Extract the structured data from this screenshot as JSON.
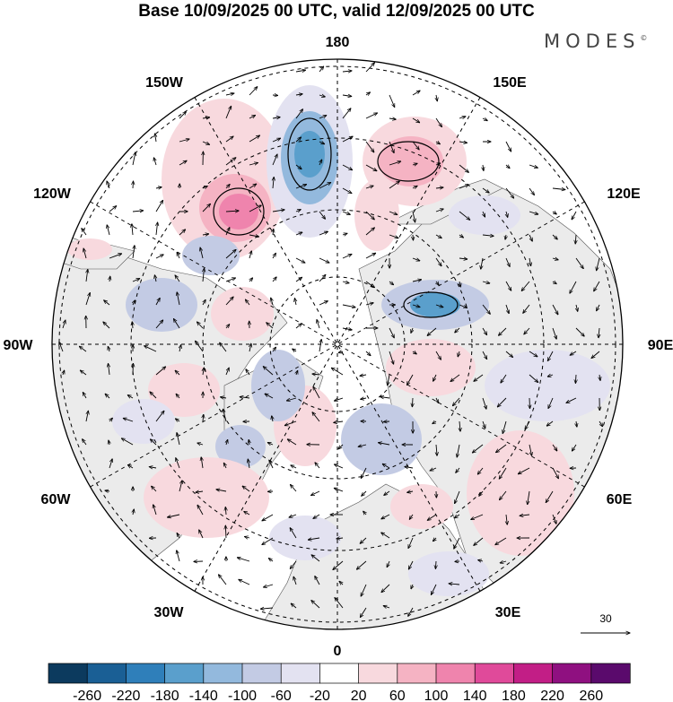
{
  "title": "Base 10/09/2025 00 UTC, valid 12/09/2025 00 UTC",
  "brand": "MODES",
  "brand_mark": "©",
  "meridian_labels": {
    "m180": "180",
    "m150e": "150E",
    "m120e": "120E",
    "m90e": "90E",
    "m60e": "60E",
    "m30e": "30E",
    "m0": "0",
    "m30w": "30W",
    "m60w": "60W",
    "m90w": "90W",
    "m120w": "120W",
    "m150w": "150W"
  },
  "vector_reference": {
    "value": "30"
  },
  "colorbar": {
    "ticks": [
      "-260",
      "-220",
      "-180",
      "-140",
      "-100",
      "-60",
      "-20",
      "20",
      "60",
      "100",
      "140",
      "180",
      "220",
      "260"
    ],
    "colors": [
      "#0c3a5e",
      "#1a5f95",
      "#2f7fba",
      "#5a9fcc",
      "#93b9dd",
      "#c3cbe4",
      "#e3e2f1",
      "#ffffff",
      "#f8d9de",
      "#f5b3c3",
      "#ef84ad",
      "#e04a9a",
      "#c21e86",
      "#8f1080",
      "#5a0a6c"
    ]
  },
  "colors": {
    "land": "#ebebeb",
    "ocean": "#ffffff",
    "grid": "#000000",
    "arrow": "#000000"
  }
}
